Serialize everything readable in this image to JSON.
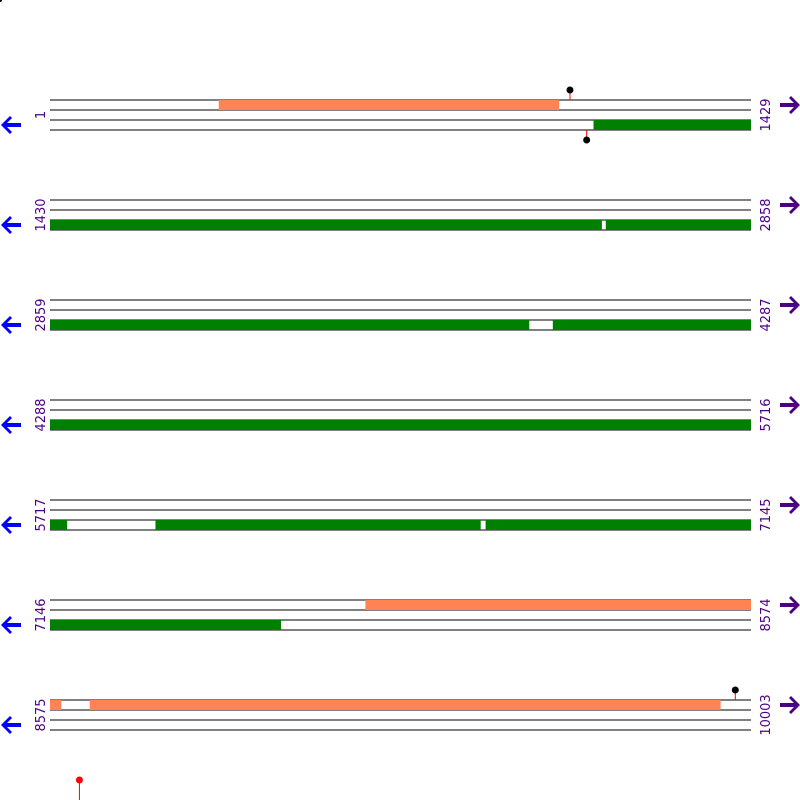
{
  "sequence": {
    "length": 10003
  },
  "colors": {
    "line": "#000000",
    "forward_feature": "#ff8353",
    "reverse_feature": "#008000",
    "left_arrow": "#0000ff",
    "right_arrow": "#4b0082",
    "label": "#4b0082",
    "marker_black": "#000000",
    "marker_red": "#ff0000"
  },
  "rows": [
    {
      "start": "1",
      "end": "1429",
      "start_pos": 1,
      "end_pos": 1429
    },
    {
      "start": "1430",
      "end": "2858",
      "start_pos": 1430,
      "end_pos": 2858
    },
    {
      "start": "2859",
      "end": "4287",
      "start_pos": 2859,
      "end_pos": 4287
    },
    {
      "start": "4288",
      "end": "5716",
      "start_pos": 4288,
      "end_pos": 5716
    },
    {
      "start": "5717",
      "end": "7145",
      "start_pos": 5717,
      "end_pos": 7145
    },
    {
      "start": "7146",
      "end": "8574",
      "start_pos": 7146,
      "end_pos": 8574
    },
    {
      "start": "8575",
      "end": "10003",
      "start_pos": 8575,
      "end_pos": 10003
    }
  ],
  "features": {
    "forward": [
      {
        "start": 345,
        "end": 1038
      },
      {
        "start": 7789,
        "end": 8574
      },
      {
        "start": 8575,
        "end": 8597
      },
      {
        "start": 8656,
        "end": 9941
      }
    ],
    "reverse": [
      {
        "start": 1109,
        "end": 1429
      },
      {
        "start": 1430,
        "end": 2554
      },
      {
        "start": 2563,
        "end": 2858
      },
      {
        "start": 2859,
        "end": 3835
      },
      {
        "start": 3884,
        "end": 4287
      },
      {
        "start": 4288,
        "end": 5716
      },
      {
        "start": 5717,
        "end": 5751
      },
      {
        "start": 5932,
        "end": 6594
      },
      {
        "start": 6605,
        "end": 7145
      },
      {
        "start": 7146,
        "end": 7616
      }
    ]
  },
  "markers": [
    {
      "pos": 1061,
      "strand": "forward",
      "color": "black"
    },
    {
      "pos": 1095,
      "strand": "reverse",
      "color": "black"
    },
    {
      "pos": 9972,
      "strand": "forward",
      "color": "black"
    },
    {
      "pos": 61,
      "strand": "below",
      "color": "red"
    }
  ]
}
